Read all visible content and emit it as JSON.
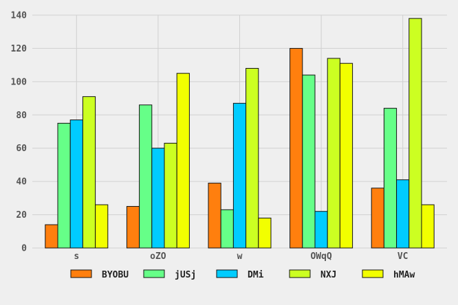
{
  "chart_data": {
    "type": "bar",
    "categories": [
      "s",
      "oZO",
      "w",
      "OWqQ",
      "VC"
    ],
    "series": [
      {
        "name": "BYOBU",
        "color": "#ff7f0e",
        "values": [
          14,
          25,
          39,
          120,
          36
        ]
      },
      {
        "name": "jUSj",
        "color": "#66ff88",
        "values": [
          75,
          86,
          23,
          104,
          84
        ]
      },
      {
        "name": "DMi",
        "color": "#00ccff",
        "values": [
          77,
          60,
          87,
          22,
          41
        ]
      },
      {
        "name": "NXJ",
        "color": "#ccff22",
        "values": [
          91,
          63,
          108,
          114,
          138
        ]
      },
      {
        "name": "hMAw",
        "color": "#f2ff00",
        "values": [
          26,
          105,
          18,
          111,
          26
        ]
      }
    ],
    "ylim": [
      0,
      140
    ],
    "yticks": [
      0,
      20,
      40,
      60,
      80,
      100,
      120,
      140
    ],
    "grid": true,
    "legend_position": "bottom",
    "title": "",
    "xlabel": "",
    "ylabel": ""
  }
}
